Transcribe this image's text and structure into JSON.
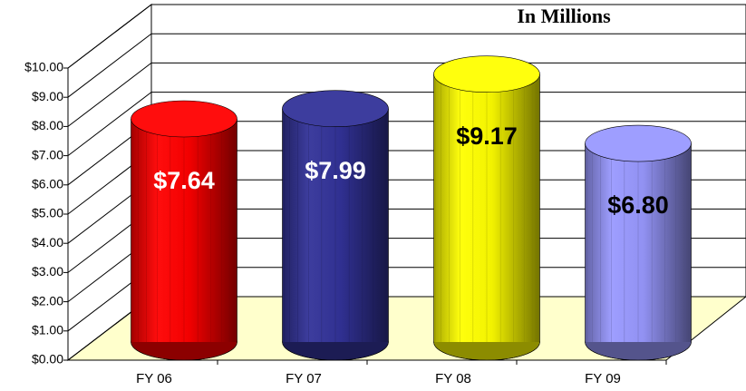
{
  "chart_data": {
    "type": "bar",
    "title": "In Millions",
    "categories": [
      "FY 06",
      "FY 07",
      "FY 08",
      "FY 09"
    ],
    "values": [
      7.64,
      7.99,
      9.17,
      6.8
    ],
    "value_labels": [
      "$7.64",
      "$7.99",
      "$9.17",
      "$6.80"
    ],
    "colors": [
      "#ff0000",
      "#333399",
      "#ffff00",
      "#9999ff"
    ],
    "ylim": [
      0,
      10
    ],
    "yticks": [
      {
        "value": 0,
        "label": "$0.00"
      },
      {
        "value": 1,
        "label": "$1.00"
      },
      {
        "value": 2,
        "label": "$2.00"
      },
      {
        "value": 3,
        "label": "$3.00"
      },
      {
        "value": 4,
        "label": "$4.00"
      },
      {
        "value": 5,
        "label": "$5.00"
      },
      {
        "value": 6,
        "label": "$6.00"
      },
      {
        "value": 7,
        "label": "$7.00"
      },
      {
        "value": 8,
        "label": "$8.00"
      },
      {
        "value": 9,
        "label": "$9.00"
      },
      {
        "value": 10,
        "label": "$10.00"
      }
    ],
    "grid": true
  }
}
